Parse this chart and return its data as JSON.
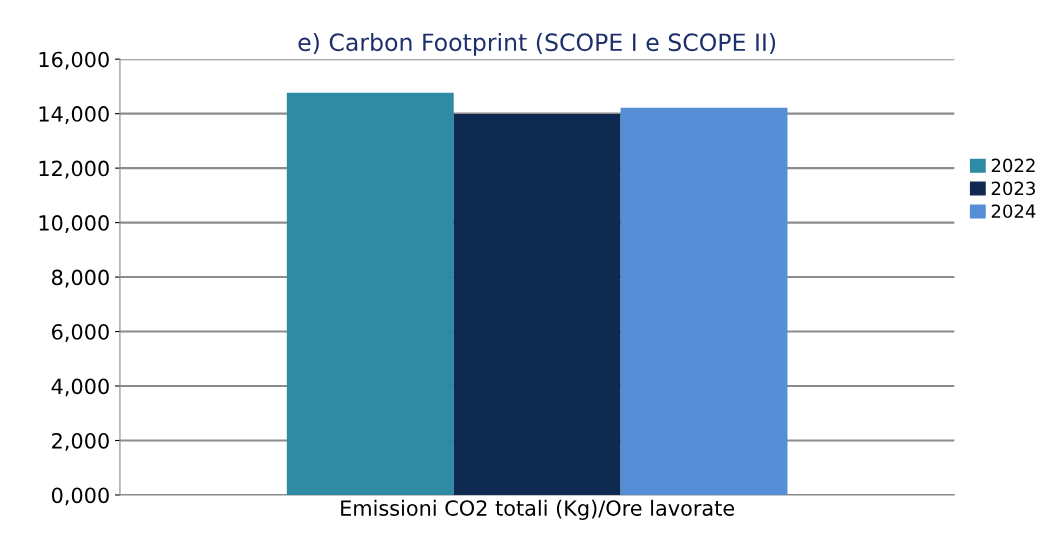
{
  "chart_data": {
    "type": "bar",
    "title": "e) Carbon Footprint (SCOPE I e SCOPE II)",
    "categories": [
      "Emissioni CO2 totali (Kg)/Ore lavorate"
    ],
    "series": [
      {
        "name": "2022",
        "color": "#2f8aa3",
        "values": [
          14770
        ]
      },
      {
        "name": "2023",
        "color": "#0e2a50",
        "values": [
          13990
        ]
      },
      {
        "name": "2024",
        "color": "#558ed5",
        "values": [
          14220
        ]
      }
    ],
    "ylim": [
      0,
      16000
    ],
    "yticks": [
      {
        "value": 0,
        "label": "0,000"
      },
      {
        "value": 2000,
        "label": "2,000"
      },
      {
        "value": 4000,
        "label": "4,000"
      },
      {
        "value": 6000,
        "label": "6,000"
      },
      {
        "value": 8000,
        "label": "8,000"
      },
      {
        "value": 10000,
        "label": "10,000"
      },
      {
        "value": 12000,
        "label": "12,000"
      },
      {
        "value": 14000,
        "label": "14,000"
      },
      {
        "value": 16000,
        "label": "16,000"
      }
    ],
    "grid": "y",
    "legend": "right"
  }
}
